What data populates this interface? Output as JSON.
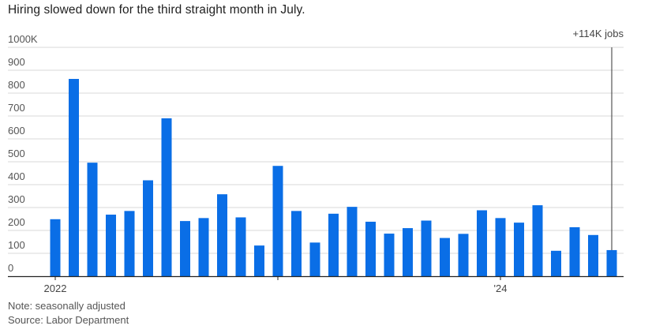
{
  "title": "Hiring slowed down for the third straight month in July.",
  "note": "Note: seasonally adjusted",
  "source": "Source: Labor Department",
  "colors": {
    "bar": "#0a6ee6",
    "grid": "#d9d9d9",
    "axis": "#222222",
    "marker": "#333333"
  },
  "chart_data": {
    "type": "bar",
    "title": "",
    "xlabel": "",
    "ylabel": "",
    "ylim": [
      0,
      1000
    ],
    "yticks": [
      {
        "value": 0,
        "label": "0"
      },
      {
        "value": 100,
        "label": "100"
      },
      {
        "value": 200,
        "label": "200"
      },
      {
        "value": 300,
        "label": "300"
      },
      {
        "value": 400,
        "label": "400"
      },
      {
        "value": 500,
        "label": "500"
      },
      {
        "value": 600,
        "label": "600"
      },
      {
        "value": 700,
        "label": "700"
      },
      {
        "value": 800,
        "label": "800"
      },
      {
        "value": 900,
        "label": "900"
      },
      {
        "value": 1000,
        "label": "1000K"
      }
    ],
    "grid": true,
    "categories": [
      "2022-01",
      "2022-02",
      "2022-03",
      "2022-04",
      "2022-05",
      "2022-06",
      "2022-07",
      "2022-08",
      "2022-09",
      "2022-10",
      "2022-11",
      "2022-12",
      "2023-01",
      "2023-02",
      "2023-03",
      "2023-04",
      "2023-05",
      "2023-06",
      "2023-07",
      "2023-08",
      "2023-09",
      "2023-10",
      "2023-11",
      "2023-12",
      "2024-01",
      "2024-02",
      "2024-03",
      "2024-04",
      "2024-05",
      "2024-06",
      "2024-07"
    ],
    "values": [
      249,
      862,
      496,
      269,
      285,
      419,
      690,
      241,
      254,
      358,
      257,
      134,
      482,
      285,
      147,
      273,
      303,
      238,
      186,
      210,
      243,
      167,
      185,
      288,
      254,
      234,
      310,
      111,
      214,
      180,
      114
    ],
    "xticks": [
      {
        "index": 0,
        "label": "2022"
      },
      {
        "index": 12,
        "label": ""
      },
      {
        "index": 24,
        "label": "'24"
      }
    ],
    "annotation": {
      "index": 30,
      "label": "+114K jobs"
    }
  }
}
